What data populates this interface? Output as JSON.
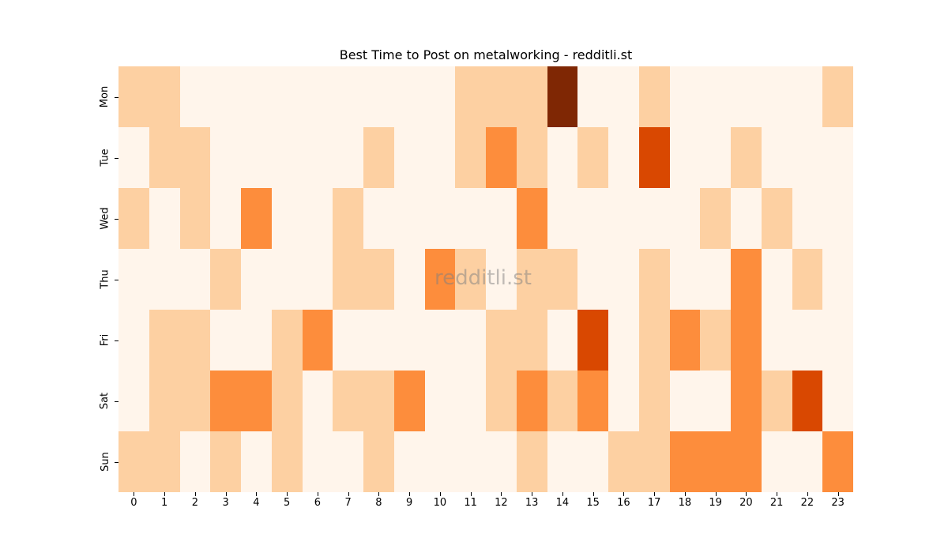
{
  "chart_data": {
    "type": "heatmap",
    "title": "Best Time to Post on metalworking - redditli.st",
    "xlabel": "",
    "ylabel": "",
    "x": [
      "0",
      "1",
      "2",
      "3",
      "4",
      "5",
      "6",
      "7",
      "8",
      "9",
      "10",
      "11",
      "12",
      "13",
      "14",
      "15",
      "16",
      "17",
      "18",
      "19",
      "20",
      "21",
      "22",
      "23"
    ],
    "y": [
      "Mon",
      "Tue",
      "Wed",
      "Thu",
      "Fri",
      "Sat",
      "Sun"
    ],
    "colormap": [
      "#fff5eb",
      "#fdd0a2",
      "#fd8d3c",
      "#d94801",
      "#7f2704"
    ],
    "values": [
      [
        1,
        1,
        0,
        0,
        0,
        0,
        0,
        0,
        0,
        0,
        0,
        1,
        1,
        1,
        4,
        0,
        0,
        1,
        0,
        0,
        0,
        0,
        0,
        1
      ],
      [
        0,
        1,
        1,
        0,
        0,
        0,
        0,
        0,
        1,
        0,
        0,
        1,
        2,
        1,
        0,
        1,
        0,
        3,
        0,
        0,
        1,
        0,
        0,
        0
      ],
      [
        1,
        0,
        1,
        0,
        2,
        0,
        0,
        1,
        0,
        0,
        0,
        0,
        0,
        2,
        0,
        0,
        0,
        0,
        0,
        1,
        0,
        1,
        0,
        0
      ],
      [
        0,
        0,
        0,
        1,
        0,
        0,
        0,
        1,
        1,
        0,
        2,
        1,
        0,
        1,
        1,
        0,
        0,
        1,
        0,
        0,
        2,
        0,
        1,
        0
      ],
      [
        0,
        1,
        1,
        0,
        0,
        1,
        2,
        0,
        0,
        0,
        0,
        0,
        1,
        1,
        0,
        3,
        0,
        1,
        2,
        1,
        2,
        0,
        0,
        0
      ],
      [
        0,
        1,
        1,
        2,
        2,
        1,
        0,
        1,
        1,
        2,
        0,
        0,
        1,
        2,
        1,
        2,
        0,
        1,
        0,
        0,
        2,
        1,
        3,
        0
      ],
      [
        1,
        1,
        0,
        1,
        0,
        1,
        0,
        0,
        1,
        0,
        0,
        0,
        0,
        1,
        0,
        0,
        1,
        1,
        2,
        2,
        2,
        0,
        0,
        2
      ]
    ],
    "legend": "none",
    "grid": false
  },
  "watermark": "redditli.st"
}
